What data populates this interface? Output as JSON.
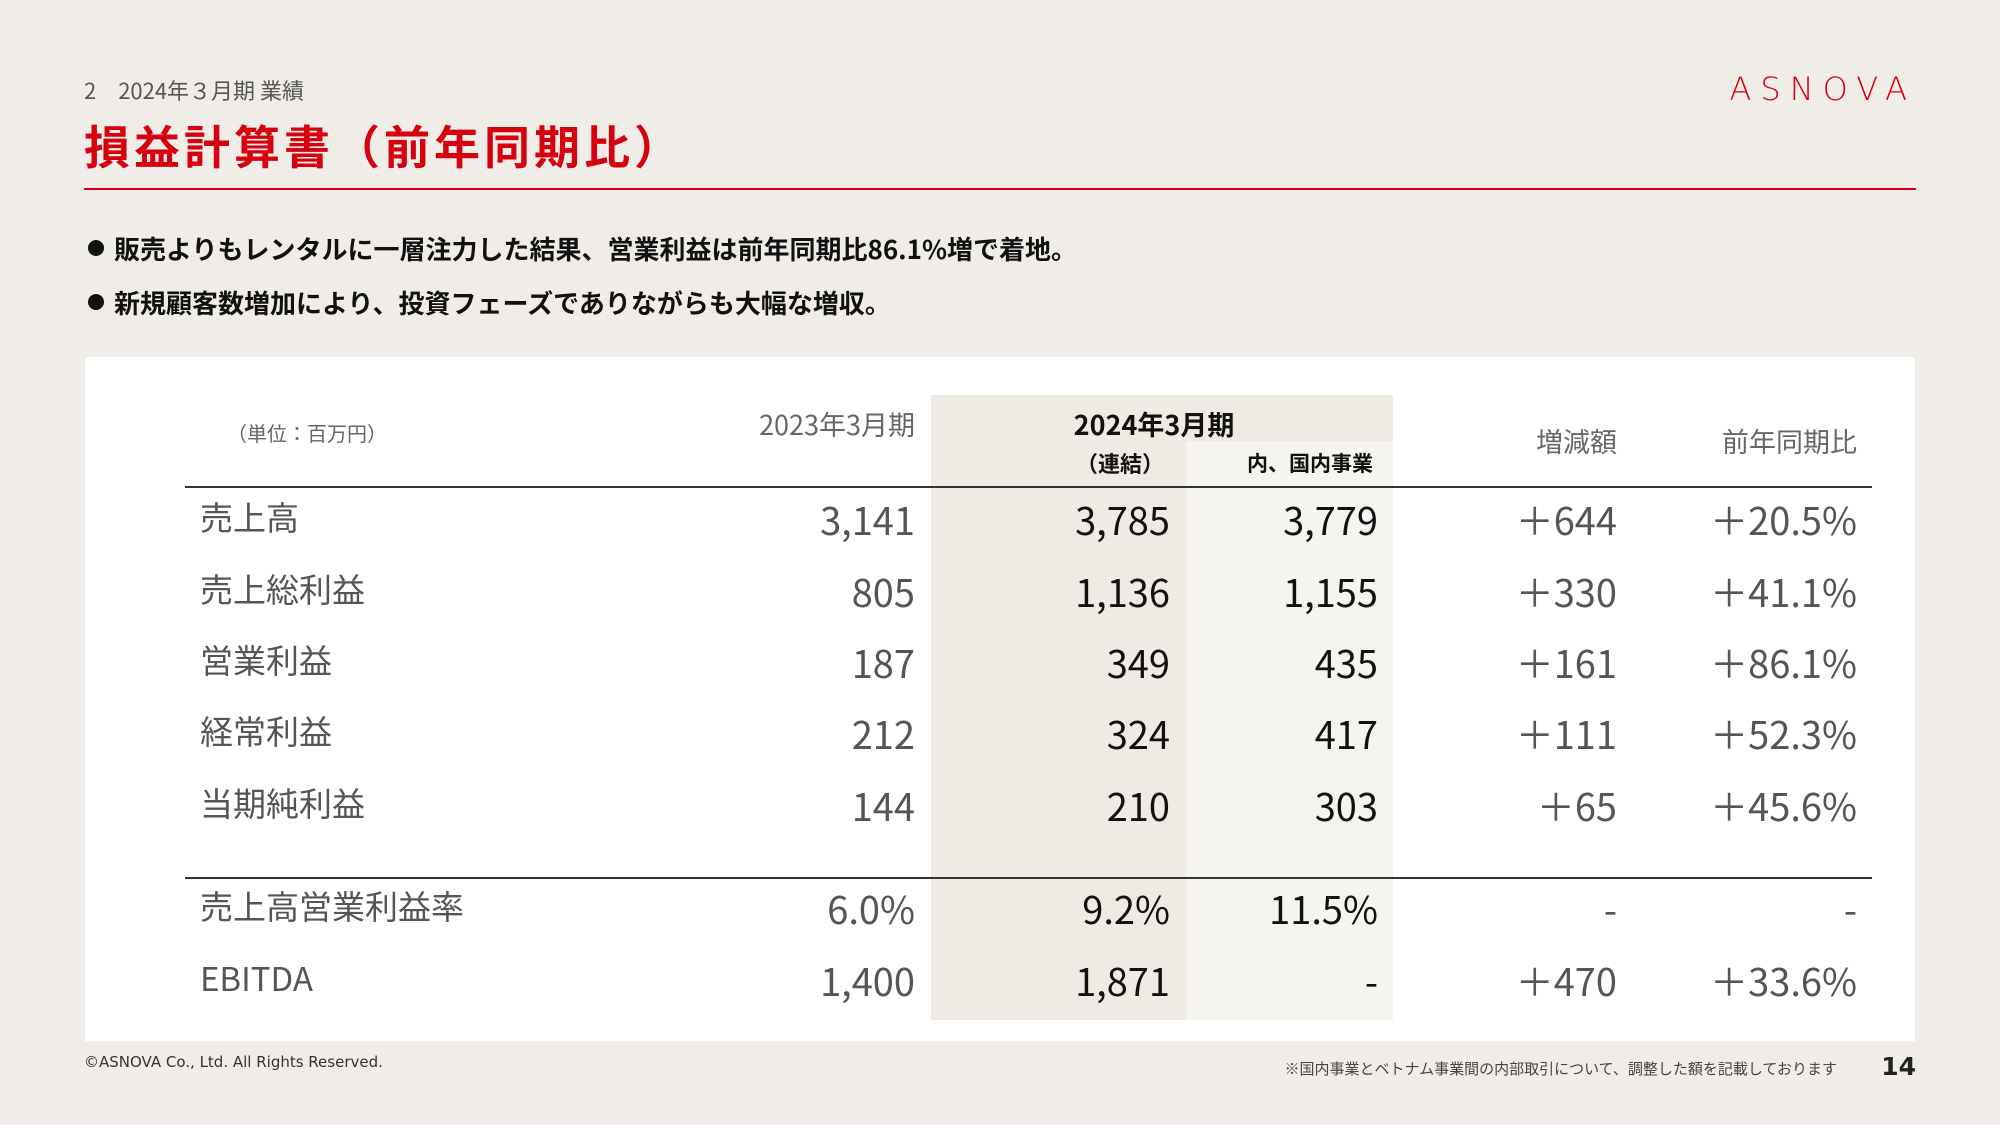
{
  "header": {
    "section": "2　2024年３月期 業績",
    "logo": "ASNOVA",
    "title": "損益計算書（前年同期比）"
  },
  "bullets": [
    "販売よりもレンタルに一層注力した結果、営業利益は前年同期比86.1%増で着地。",
    "新規顧客数増加により、投資フェーズでありながらも大幅な増収。"
  ],
  "table": {
    "unit": "（単位：百万円）",
    "columns": {
      "prior": "2023年3月期",
      "current": "2024年3月期",
      "consolidated": "（連結）",
      "domestic": "内、国内事業",
      "change": "増減額",
      "ratio": "前年同期比"
    },
    "rows": [
      [
        "売上高",
        "3,141",
        "3,785",
        "3,779",
        "＋644",
        "＋20.5%"
      ],
      [
        "売上総利益",
        "805",
        "1,136",
        "1,155",
        "＋330",
        "＋41.1%"
      ],
      [
        "営業利益",
        "187",
        "349",
        "435",
        "＋161",
        "＋86.1%"
      ],
      [
        "経常利益",
        "212",
        "324",
        "417",
        "＋111",
        "＋52.3%"
      ],
      [
        "当期純利益",
        "144",
        "210",
        "303",
        "＋65",
        "＋45.6%"
      ],
      [
        "売上高営業利益率",
        "6.0%",
        "9.2%",
        "11.5%",
        "-",
        "-"
      ],
      [
        "EBITDA",
        "1,400",
        "1,871",
        "-",
        "＋470",
        "＋33.6%"
      ]
    ]
  },
  "footer": {
    "copyright": "©ASNOVA Co., Ltd. All Rights Reserved.",
    "note": "※国内事業とベトナム事業間の内部取引について、調整した額を記載しております",
    "page": 14
  }
}
